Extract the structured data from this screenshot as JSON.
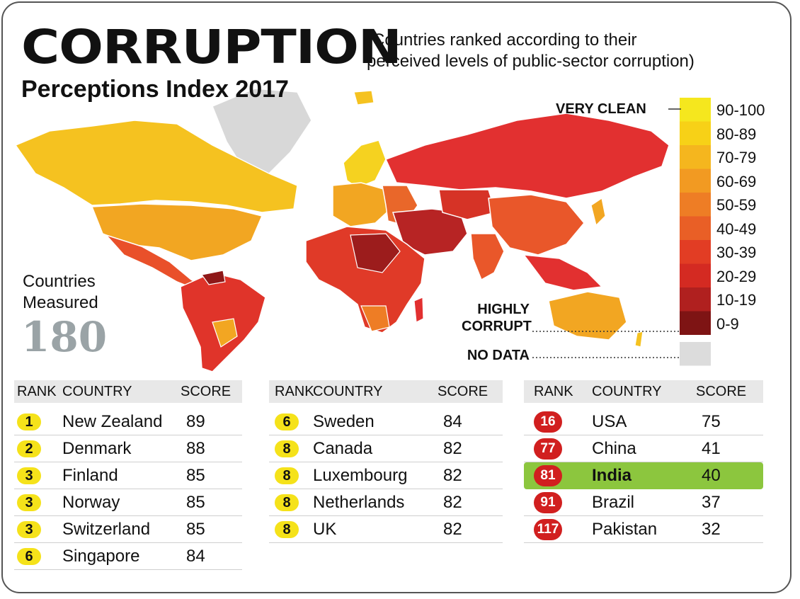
{
  "title": "CORRUPTION",
  "title_sub": "Perceptions Index 2017",
  "subtitle_line1": "(Countries ranked according to their",
  "subtitle_line2": "perceived levels of public-sector corruption)",
  "countries_measured_line1": "Countries",
  "countries_measured_line2": "Measured",
  "countries_measured_value": "180",
  "annotations": {
    "very_clean": "VERY CLEAN",
    "highly_corrupt_line1": "HIGHLY",
    "highly_corrupt_line2": "CORRUPT",
    "no_data": "NO DATA"
  },
  "legend": [
    {
      "label": "90-100",
      "color": "#f5e71e"
    },
    {
      "label": "80-89",
      "color": "#f7d117"
    },
    {
      "label": "70-79",
      "color": "#f5b61e"
    },
    {
      "label": "60-69",
      "color": "#f29a22"
    },
    {
      "label": "50-59",
      "color": "#ee7d25"
    },
    {
      "label": "40-49",
      "color": "#e95f26"
    },
    {
      "label": "30-39",
      "color": "#e23d24"
    },
    {
      "label": "20-29",
      "color": "#d42a22"
    },
    {
      "label": "10-19",
      "color": "#b0201f"
    },
    {
      "label": "0-9",
      "color": "#7e1414"
    },
    {
      "label": "",
      "color": "#dcdcdc"
    }
  ],
  "table_headers": {
    "rank": "RANK",
    "country": "COUNTRY",
    "score": "SCORE"
  },
  "chart_data": {
    "type": "table",
    "columns": [
      "RANK",
      "COUNTRY",
      "SCORE"
    ],
    "tables": [
      [
        {
          "rank": "1",
          "country": "New Zealand",
          "score": "89"
        },
        {
          "rank": "2",
          "country": "Denmark",
          "score": "88"
        },
        {
          "rank": "3",
          "country": "Finland",
          "score": "85"
        },
        {
          "rank": "3",
          "country": "Norway",
          "score": "85"
        },
        {
          "rank": "3",
          "country": "Switzerland",
          "score": "85"
        },
        {
          "rank": "6",
          "country": "Singapore",
          "score": "84"
        }
      ],
      [
        {
          "rank": "6",
          "country": "Sweden",
          "score": "84"
        },
        {
          "rank": "8",
          "country": "Canada",
          "score": "82"
        },
        {
          "rank": "8",
          "country": "Luxembourg",
          "score": "82"
        },
        {
          "rank": "8",
          "country": "Netherlands",
          "score": "82"
        },
        {
          "rank": "8",
          "country": "UK",
          "score": "82"
        }
      ],
      [
        {
          "rank": "16",
          "country": "USA",
          "score": "75"
        },
        {
          "rank": "77",
          "country": "China",
          "score": "41"
        },
        {
          "rank": "81",
          "country": "India",
          "score": "40",
          "highlight": true
        },
        {
          "rank": "91",
          "country": "Brazil",
          "score": "37"
        },
        {
          "rank": "117",
          "country": "Pakistan",
          "score": "32"
        }
      ]
    ],
    "highlight_color": "#8cc63e"
  }
}
